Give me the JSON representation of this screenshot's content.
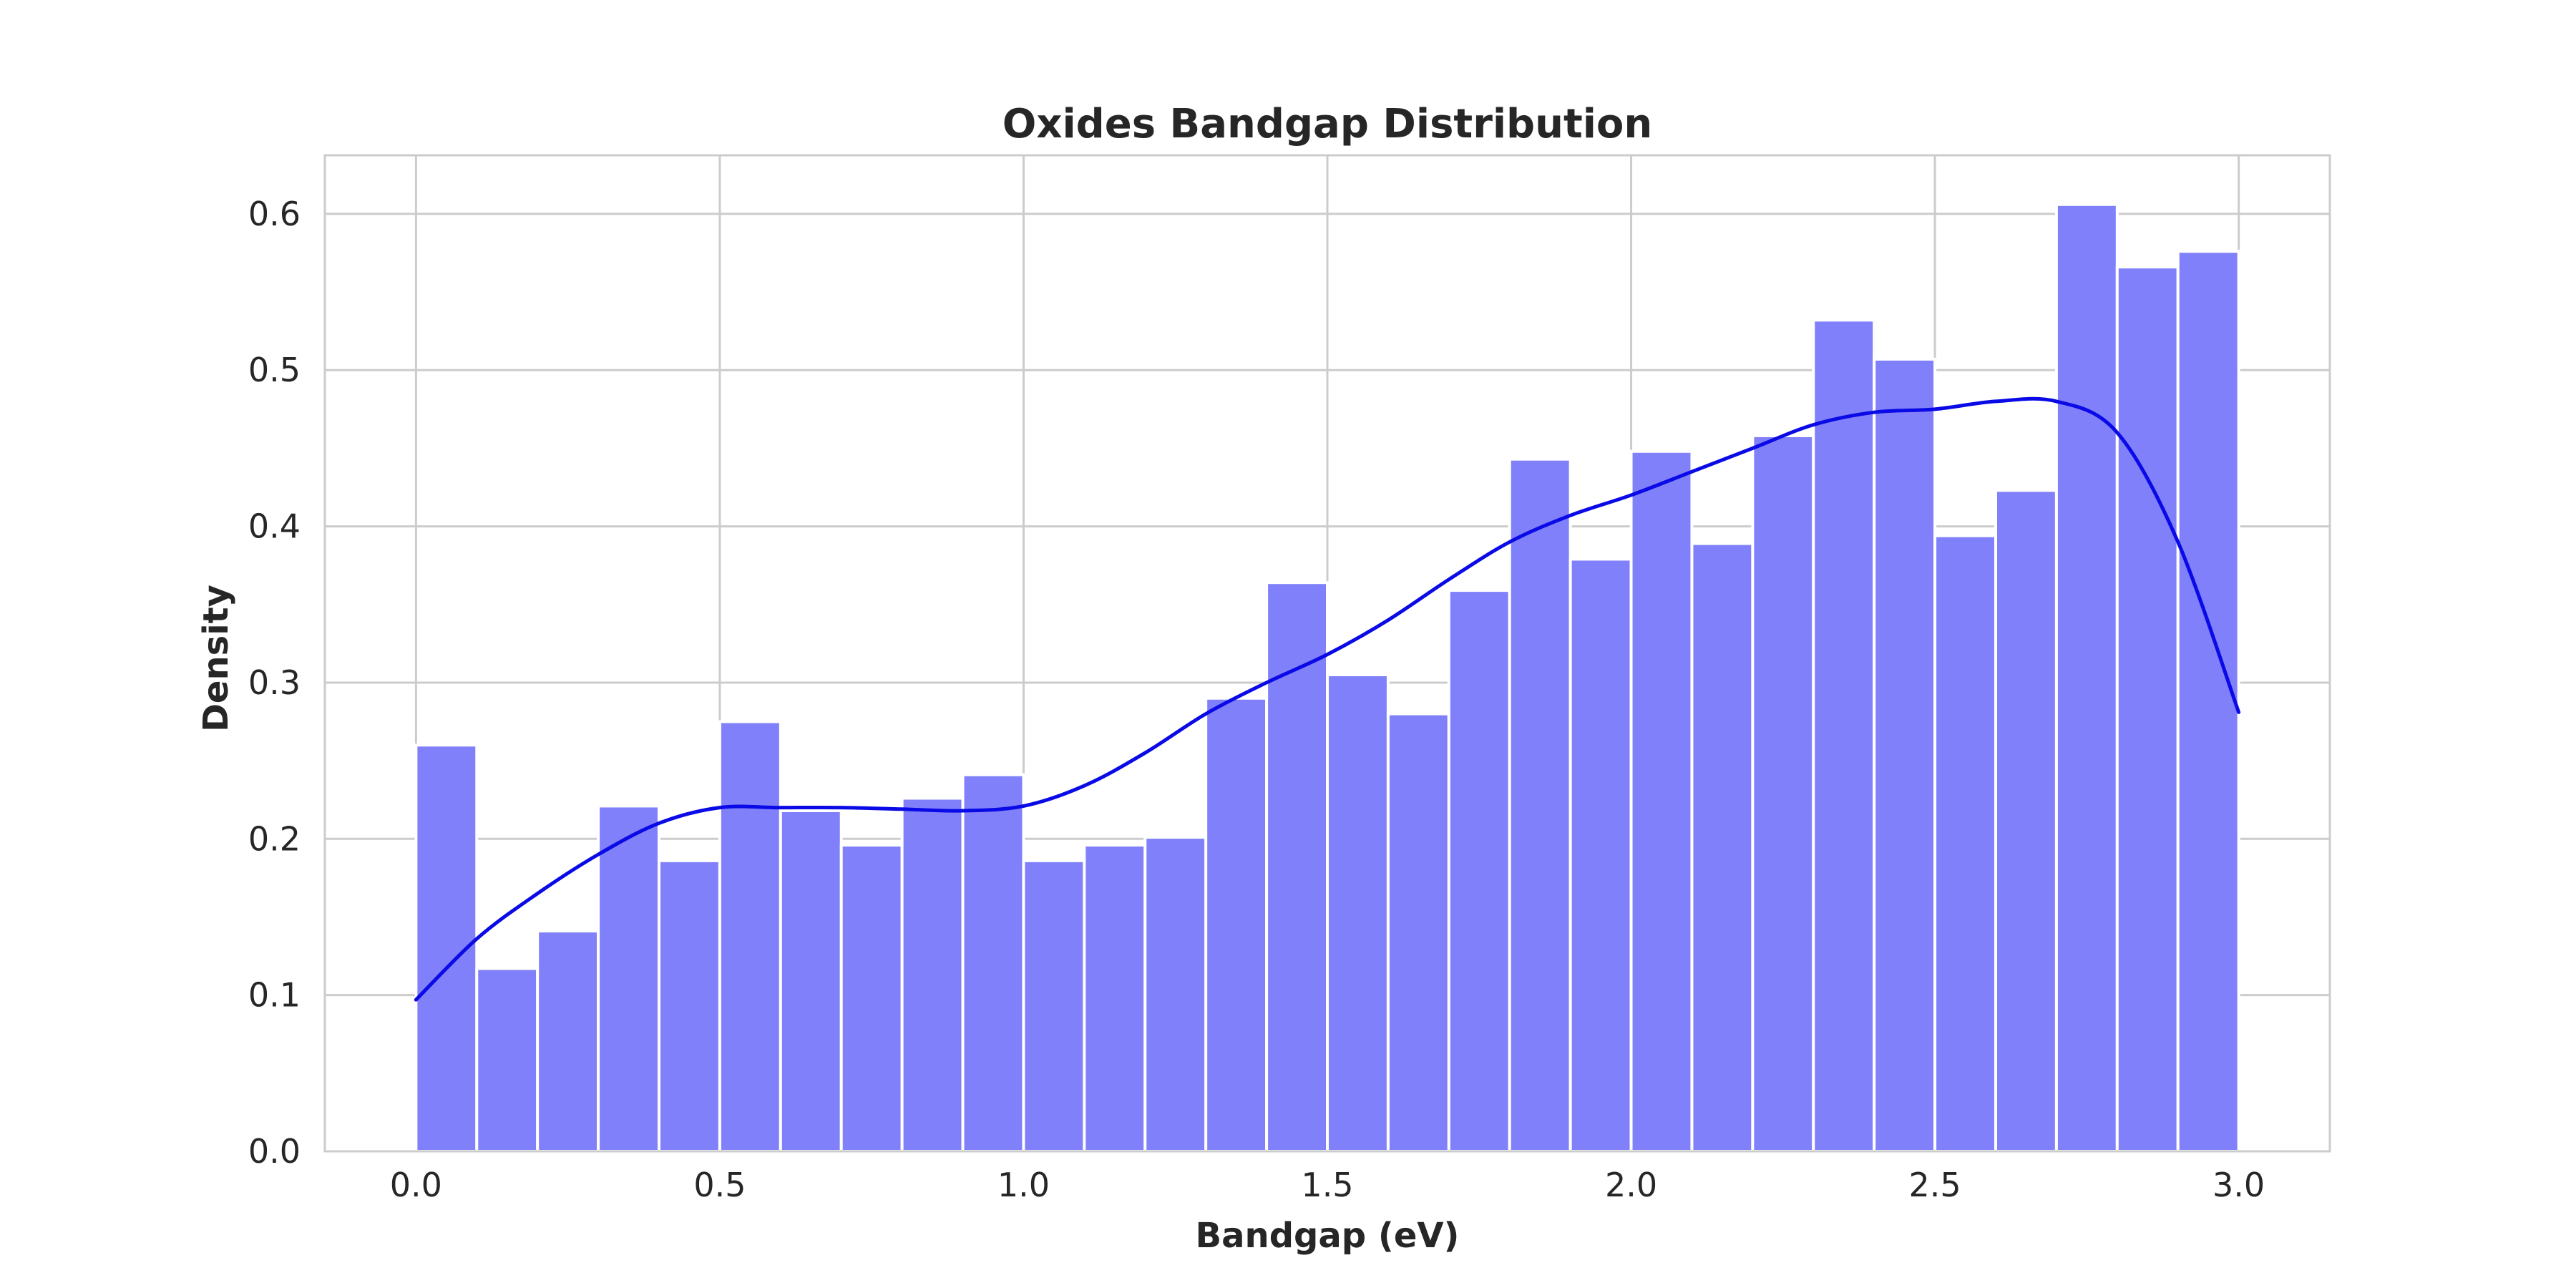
{
  "chart_data": {
    "type": "bar",
    "subtype": "histogram-with-kde",
    "title": "Oxides Bandgap Distribution",
    "xlabel": "Bandgap (eV)",
    "ylabel": "Density",
    "xlim": [
      -0.15,
      3.15
    ],
    "ylim": [
      0,
      0.6375
    ],
    "xticks": [
      0.0,
      0.5,
      1.0,
      1.5,
      2.0,
      2.5,
      3.0
    ],
    "xtick_labels": [
      "0.0",
      "0.5",
      "1.0",
      "1.5",
      "2.0",
      "2.5",
      "3.0"
    ],
    "yticks": [
      0.0,
      0.1,
      0.2,
      0.3,
      0.4,
      0.5,
      0.6
    ],
    "ytick_labels": [
      "0.0",
      "0.1",
      "0.2",
      "0.3",
      "0.4",
      "0.5",
      "0.6"
    ],
    "grid": true,
    "legend": "none",
    "bin_edges": [
      0.0,
      0.1,
      0.2,
      0.3,
      0.4,
      0.5,
      0.6,
      0.7,
      0.8,
      0.9,
      1.0,
      1.1,
      1.2,
      1.3,
      1.4,
      1.5,
      1.6,
      1.7,
      1.8,
      1.9,
      2.0,
      2.1,
      2.2,
      2.3,
      2.4,
      2.5,
      2.6,
      2.7,
      2.8,
      2.9,
      3.0
    ],
    "values": [
      0.26,
      0.117,
      0.141,
      0.221,
      0.186,
      0.275,
      0.218,
      0.196,
      0.226,
      0.241,
      0.186,
      0.196,
      0.201,
      0.29,
      0.364,
      0.305,
      0.28,
      0.359,
      0.443,
      0.379,
      0.448,
      0.389,
      0.458,
      0.532,
      0.507,
      0.394,
      0.423,
      0.606,
      0.566,
      0.576
    ],
    "kde": {
      "x": [
        0.0,
        0.1,
        0.2,
        0.3,
        0.4,
        0.5,
        0.6,
        0.7,
        0.8,
        0.9,
        1.0,
        1.1,
        1.2,
        1.3,
        1.4,
        1.5,
        1.6,
        1.7,
        1.8,
        1.9,
        2.0,
        2.1,
        2.2,
        2.3,
        2.4,
        2.5,
        2.6,
        2.7,
        2.8,
        2.9,
        3.0
      ],
      "y": [
        0.097,
        0.136,
        0.165,
        0.19,
        0.21,
        0.22,
        0.22,
        0.22,
        0.219,
        0.218,
        0.221,
        0.234,
        0.255,
        0.28,
        0.3,
        0.318,
        0.34,
        0.366,
        0.39,
        0.407,
        0.42,
        0.435,
        0.45,
        0.465,
        0.473,
        0.475,
        0.48,
        0.48,
        0.46,
        0.39,
        0.281
      ]
    },
    "colors": {
      "bar": "#8080fa",
      "kde": "#0a0ae6",
      "grid": "#cccccc"
    }
  }
}
